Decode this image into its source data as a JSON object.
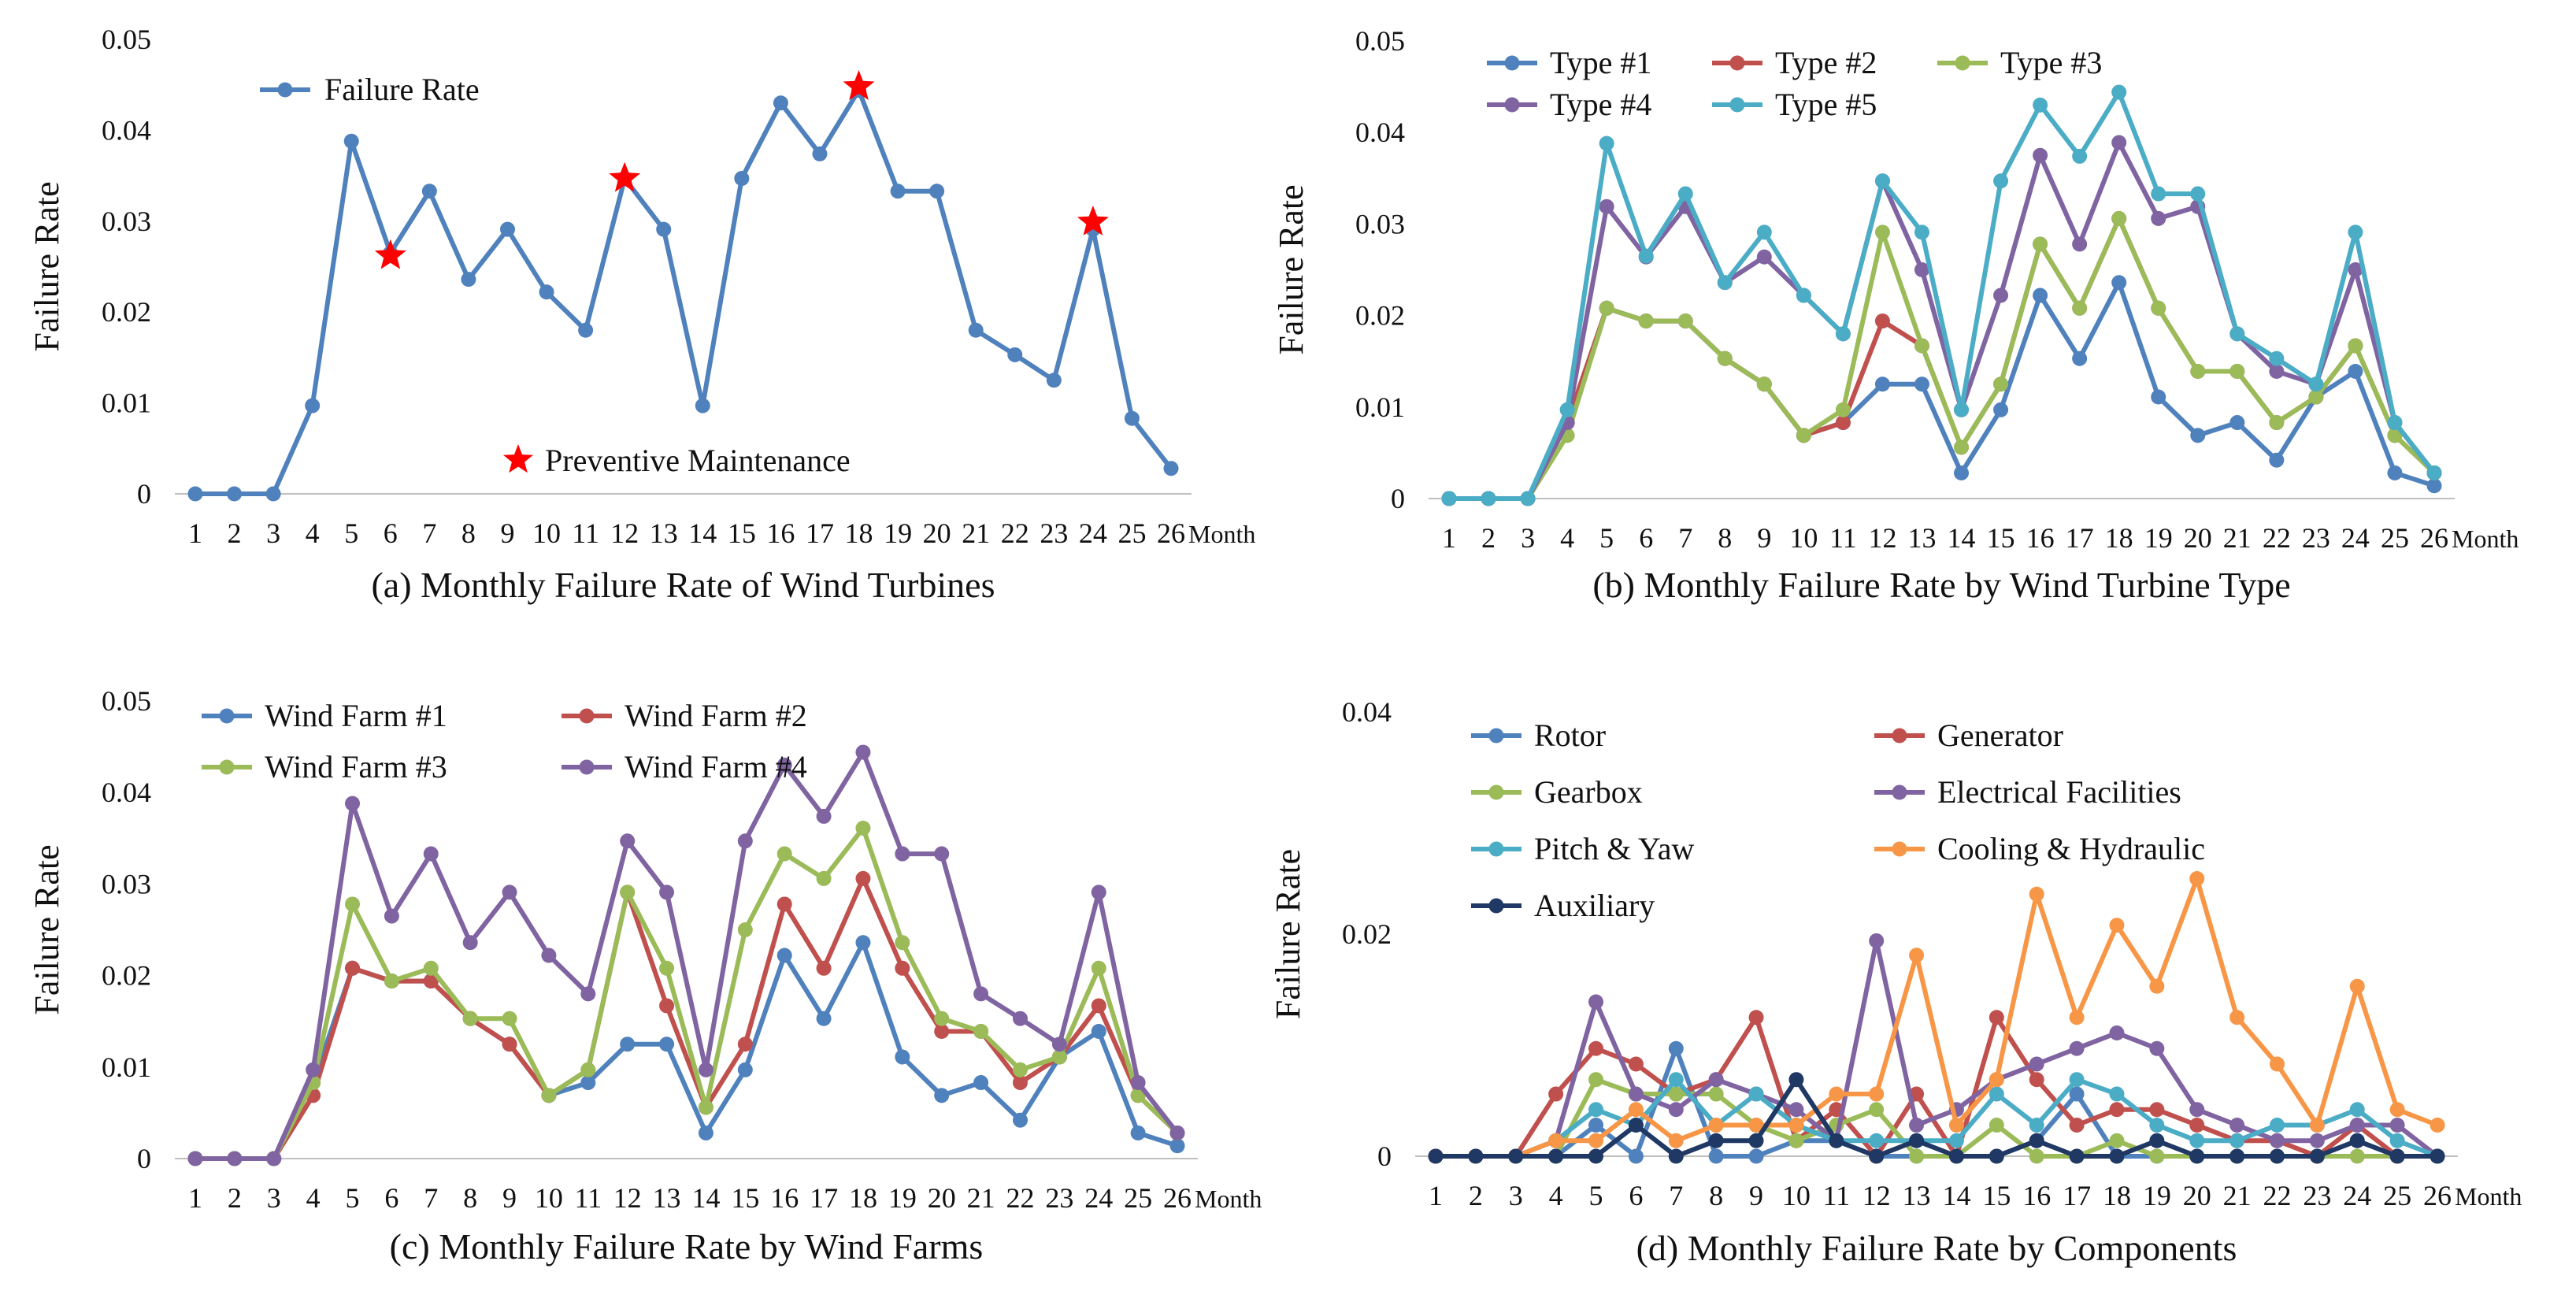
{
  "chart_data": [
    {
      "id": "a",
      "type": "line",
      "caption": "(a) Monthly Failure Rate of Wind Turbines",
      "ylabel": "Failure Rate",
      "xlabel": "Month",
      "ylim": [
        0,
        0.05
      ],
      "yticks": [
        "0",
        "0.01",
        "0.02",
        "0.03",
        "0.04",
        "0.05"
      ],
      "categories": [
        "1",
        "2",
        "3",
        "4",
        "5",
        "6",
        "7",
        "8",
        "9",
        "10",
        "11",
        "12",
        "13",
        "14",
        "15",
        "16",
        "17",
        "18",
        "19",
        "20",
        "21",
        "22",
        "23",
        "24",
        "25",
        "26"
      ],
      "series": [
        {
          "name": "Failure Rate",
          "color": "#4F81BD",
          "values": [
            0,
            0,
            0,
            0.0097,
            0.0388,
            0.0265,
            0.0333,
            0.0236,
            0.0291,
            0.0222,
            0.018,
            0.0347,
            0.0291,
            0.0097,
            0.0347,
            0.043,
            0.0374,
            0.0444,
            0.0333,
            0.0333,
            0.018,
            0.0153,
            0.0125,
            0.0291,
            0.0083,
            0.0028
          ]
        }
      ],
      "annotations": {
        "label": "Preventive Maintenance",
        "color": "#FF0000",
        "points": [
          {
            "x": 6,
            "y": 0.0262
          },
          {
            "x": 12,
            "y": 0.0347
          },
          {
            "x": 18,
            "y": 0.0448
          },
          {
            "x": 24,
            "y": 0.0299
          }
        ]
      }
    },
    {
      "id": "b",
      "type": "line",
      "caption": "(b) Monthly Failure Rate by Wind Turbine Type",
      "ylabel": "Failure Rate",
      "xlabel": "Month",
      "ylim": [
        0,
        0.05
      ],
      "yticks": [
        "0",
        "0.01",
        "0.02",
        "0.03",
        "0.04",
        "0.05"
      ],
      "categories": [
        "1",
        "2",
        "3",
        "4",
        "5",
        "6",
        "7",
        "8",
        "9",
        "10",
        "11",
        "12",
        "13",
        "14",
        "15",
        "16",
        "17",
        "18",
        "19",
        "20",
        "21",
        "22",
        "23",
        "24",
        "25",
        "26"
      ],
      "series": [
        {
          "name": "Type #1",
          "color": "#4F81BD",
          "values": [
            0,
            0,
            0,
            0.0083,
            0.0208,
            0.0194,
            0.0194,
            0.0153,
            0.0125,
            0.0069,
            0.0083,
            0.0125,
            0.0125,
            0.0028,
            0.0097,
            0.0222,
            0.0153,
            0.0236,
            0.0111,
            0.0069,
            0.0083,
            0.0042,
            0.0111,
            0.0139,
            0.0028,
            0.0014
          ]
        },
        {
          "name": "Type #2",
          "color": "#C0504D",
          "values": [
            0,
            0,
            0,
            0.0083,
            0.0208,
            0.0194,
            0.0194,
            0.0153,
            0.0125,
            0.0069,
            0.0083,
            0.0194,
            0.0167,
            0.0056,
            0.0125,
            0.0278,
            0.0208,
            0.0306,
            0.0208,
            0.0139,
            0.0139,
            0.0083,
            0.0111,
            0.0167,
            0.0069,
            0.0028
          ]
        },
        {
          "name": "Type #3",
          "color": "#9BBB59",
          "values": [
            0,
            0,
            0,
            0.0069,
            0.0208,
            0.0194,
            0.0194,
            0.0153,
            0.0125,
            0.0069,
            0.0097,
            0.0291,
            0.0167,
            0.0056,
            0.0125,
            0.0278,
            0.0208,
            0.0306,
            0.0208,
            0.0139,
            0.0139,
            0.0083,
            0.0111,
            0.0167,
            0.0069,
            0.0028
          ]
        },
        {
          "name": "Type #4",
          "color": "#8064A2",
          "values": [
            0,
            0,
            0,
            0.0083,
            0.0319,
            0.0264,
            0.0319,
            0.0236,
            0.0264,
            0.0222,
            0.018,
            0.0347,
            0.025,
            0.0097,
            0.0222,
            0.0375,
            0.0278,
            0.0389,
            0.0306,
            0.0319,
            0.018,
            0.0139,
            0.0125,
            0.025,
            0.0083,
            0.0028
          ]
        },
        {
          "name": "Type #5",
          "color": "#4BACC6",
          "values": [
            0,
            0,
            0,
            0.0097,
            0.0388,
            0.0265,
            0.0333,
            0.0236,
            0.0291,
            0.0222,
            0.018,
            0.0347,
            0.0291,
            0.0097,
            0.0347,
            0.043,
            0.0374,
            0.0444,
            0.0333,
            0.0333,
            0.018,
            0.0153,
            0.0125,
            0.0291,
            0.0083,
            0.0028
          ]
        }
      ]
    },
    {
      "id": "c",
      "type": "line",
      "caption": "(c) Monthly Failure Rate by Wind Farms",
      "ylabel": "Failure Rate",
      "xlabel": "Month",
      "ylim": [
        0,
        0.05
      ],
      "yticks": [
        "0",
        "0.01",
        "0.02",
        "0.03",
        "0.04",
        "0.05"
      ],
      "categories": [
        "1",
        "2",
        "3",
        "4",
        "5",
        "6",
        "7",
        "8",
        "9",
        "10",
        "11",
        "12",
        "13",
        "14",
        "15",
        "16",
        "17",
        "18",
        "19",
        "20",
        "21",
        "22",
        "23",
        "24",
        "25",
        "26"
      ],
      "series": [
        {
          "name": "Wind Farm #1",
          "color": "#4F81BD",
          "values": [
            0,
            0,
            0,
            0.0083,
            0.0208,
            0.0194,
            0.0194,
            0.0153,
            0.0125,
            0.0069,
            0.0083,
            0.0125,
            0.0125,
            0.0028,
            0.0097,
            0.0222,
            0.0153,
            0.0236,
            0.0111,
            0.0069,
            0.0083,
            0.0042,
            0.0111,
            0.0139,
            0.0028,
            0.0014
          ]
        },
        {
          "name": "Wind Farm #2",
          "color": "#C0504D",
          "values": [
            0,
            0,
            0,
            0.0069,
            0.0208,
            0.0194,
            0.0194,
            0.0153,
            0.0125,
            0.0069,
            0.0097,
            0.0291,
            0.0167,
            0.0056,
            0.0125,
            0.0278,
            0.0208,
            0.0306,
            0.0208,
            0.0139,
            0.0139,
            0.0083,
            0.0111,
            0.0167,
            0.0069,
            0.0028
          ]
        },
        {
          "name": "Wind Farm #3",
          "color": "#9BBB59",
          "values": [
            0,
            0,
            0,
            0.0083,
            0.0278,
            0.0194,
            0.0208,
            0.0153,
            0.0153,
            0.0069,
            0.0097,
            0.0291,
            0.0208,
            0.0056,
            0.025,
            0.0333,
            0.0306,
            0.0361,
            0.0236,
            0.0153,
            0.0139,
            0.0097,
            0.0111,
            0.0208,
            0.0069,
            0.0028
          ]
        },
        {
          "name": "Wind Farm #4",
          "color": "#8064A2",
          "values": [
            0,
            0,
            0,
            0.0097,
            0.0388,
            0.0265,
            0.0333,
            0.0236,
            0.0291,
            0.0222,
            0.018,
            0.0347,
            0.0291,
            0.0097,
            0.0347,
            0.043,
            0.0374,
            0.0444,
            0.0333,
            0.0333,
            0.018,
            0.0153,
            0.0125,
            0.0291,
            0.0083,
            0.0028
          ]
        }
      ]
    },
    {
      "id": "d",
      "type": "line",
      "caption": "(d) Monthly Failure Rate by Components",
      "ylabel": "Failure Rate",
      "xlabel": "Month",
      "ylim": [
        0,
        0.04
      ],
      "yticks": [
        "0",
        "0.02",
        "0.04"
      ],
      "categories": [
        "1",
        "2",
        "3",
        "4",
        "5",
        "6",
        "7",
        "8",
        "9",
        "10",
        "11",
        "12",
        "13",
        "14",
        "15",
        "16",
        "17",
        "18",
        "19",
        "20",
        "21",
        "22",
        "23",
        "24",
        "25",
        "26"
      ],
      "series": [
        {
          "name": "Rotor",
          "color": "#4F81BD",
          "values": [
            0,
            0,
            0,
            0,
            0.0028,
            0,
            0.0097,
            0,
            0,
            0.0014,
            0.0014,
            0,
            0,
            0,
            0,
            0.0014,
            0.0056,
            0,
            0,
            0,
            0,
            0,
            0,
            0.0014,
            0,
            0
          ]
        },
        {
          "name": "Generator",
          "color": "#C0504D",
          "values": [
            0,
            0,
            0,
            0.0056,
            0.0097,
            0.0083,
            0.0056,
            0.0069,
            0.0125,
            0.0014,
            0.0042,
            0,
            0.0056,
            0,
            0.0125,
            0.0069,
            0.0028,
            0.0042,
            0.0042,
            0.0028,
            0.0014,
            0.0014,
            0,
            0.0028,
            0,
            0
          ]
        },
        {
          "name": "Gearbox",
          "color": "#9BBB59",
          "values": [
            0,
            0,
            0,
            0,
            0.0069,
            0.0056,
            0.0056,
            0.0056,
            0.0028,
            0.0014,
            0.0028,
            0.0042,
            0,
            0,
            0.0028,
            0,
            0,
            0.0014,
            0,
            0,
            0,
            0,
            0,
            0,
            0,
            0
          ]
        },
        {
          "name": "Electrical Facilities",
          "color": "#8064A2",
          "values": [
            0,
            0,
            0,
            0.0014,
            0.0139,
            0.0056,
            0.0042,
            0.0069,
            0.0056,
            0.0042,
            0.0014,
            0.0194,
            0.0028,
            0.0042,
            0.0069,
            0.0083,
            0.0097,
            0.0111,
            0.0097,
            0.0042,
            0.0028,
            0.0014,
            0.0014,
            0.0028,
            0.0028,
            0
          ]
        },
        {
          "name": "Pitch & Yaw",
          "color": "#4BACC6",
          "values": [
            0,
            0,
            0,
            0.0014,
            0.0042,
            0.0028,
            0.0069,
            0.0028,
            0.0056,
            0.0028,
            0.0014,
            0.0014,
            0.0014,
            0.0014,
            0.0056,
            0.0028,
            0.0069,
            0.0056,
            0.0028,
            0.0014,
            0.0014,
            0.0028,
            0.0028,
            0.0042,
            0.0014,
            0
          ]
        },
        {
          "name": "Cooling & Hydraulic",
          "color": "#F79646",
          "values": [
            0,
            0,
            0,
            0.0014,
            0.0014,
            0.0042,
            0.0014,
            0.0028,
            0.0028,
            0.0028,
            0.0056,
            0.0056,
            0.0181,
            0.0028,
            0.0069,
            0.0236,
            0.0125,
            0.0208,
            0.0153,
            0.025,
            0.0125,
            0.0083,
            0.0028,
            0.0153,
            0.0042,
            0.0028
          ]
        },
        {
          "name": "Auxiliary",
          "color": "#1F3864",
          "values": [
            0,
            0,
            0,
            0,
            0,
            0.0028,
            0,
            0.0014,
            0.0014,
            0.0069,
            0.0014,
            0,
            0.0014,
            0,
            0,
            0.0014,
            0,
            0,
            0.0014,
            0,
            0,
            0,
            0,
            0.0014,
            0,
            0
          ]
        }
      ]
    }
  ]
}
